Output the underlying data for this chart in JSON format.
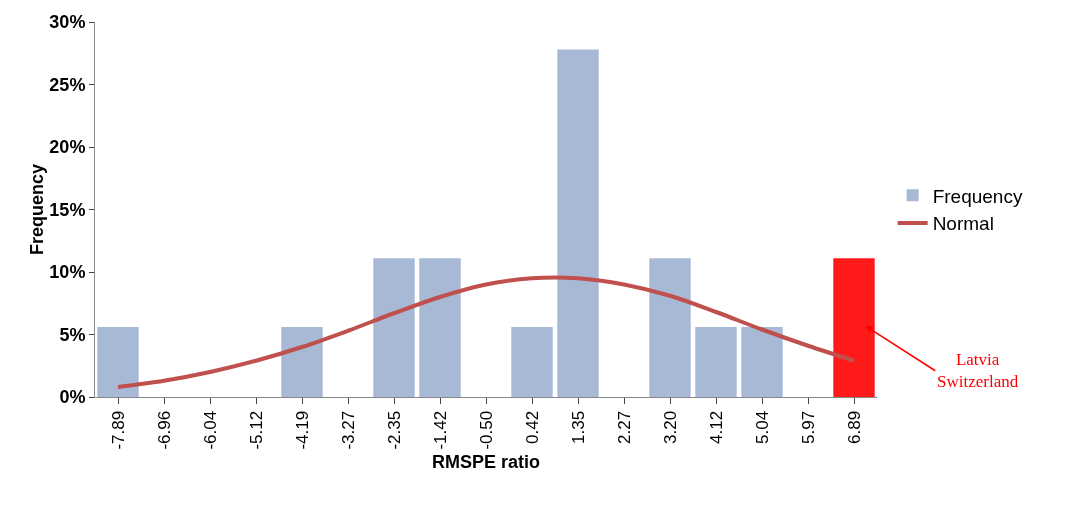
{
  "chart_data": {
    "type": "bar",
    "xlabel": "RMSPE ratio",
    "ylabel": "Frequency",
    "categories": [
      "-7.89",
      "-6.96",
      "-6.04",
      "-5.12",
      "-4.19",
      "-3.27",
      "-2.35",
      "-1.42",
      "-0.50",
      "0.42",
      "1.35",
      "2.27",
      "3.20",
      "4.12",
      "5.04",
      "5.97",
      "6.89"
    ],
    "series": [
      {
        "name": "Frequency",
        "color": "#a8b9d6",
        "colors": [
          null,
          null,
          null,
          null,
          null,
          null,
          null,
          null,
          null,
          null,
          null,
          null,
          null,
          null,
          null,
          null,
          "#ff1a1a"
        ],
        "values": [
          5.6,
          0,
          0,
          0,
          5.6,
          0,
          11.1,
          11.1,
          0,
          5.6,
          27.8,
          0,
          11.1,
          5.6,
          5.6,
          0,
          11.1
        ]
      },
      {
        "name": "Normal",
        "type": "line",
        "color": "#c0504d",
        "values": [
          0.8,
          1.3,
          2.0,
          2.9,
          4.0,
          5.3,
          6.7,
          8.0,
          9.0,
          9.5,
          9.5,
          9.0,
          8.1,
          6.8,
          5.4,
          4.1,
          2.9
        ]
      }
    ],
    "ylim": [
      0,
      30
    ],
    "yticks": [
      {
        "value": 0,
        "label": "0%"
      },
      {
        "value": 5,
        "label": "5%"
      },
      {
        "value": 10,
        "label": "10%"
      },
      {
        "value": 15,
        "label": "15%"
      },
      {
        "value": 20,
        "label": "20%"
      },
      {
        "value": 25,
        "label": "25%"
      },
      {
        "value": 30,
        "label": "30%"
      }
    ],
    "grid": false,
    "legend": "right",
    "marker": "none",
    "line_style": "solid",
    "annotations": [
      "Latvia\nSwitzerland"
    ]
  }
}
